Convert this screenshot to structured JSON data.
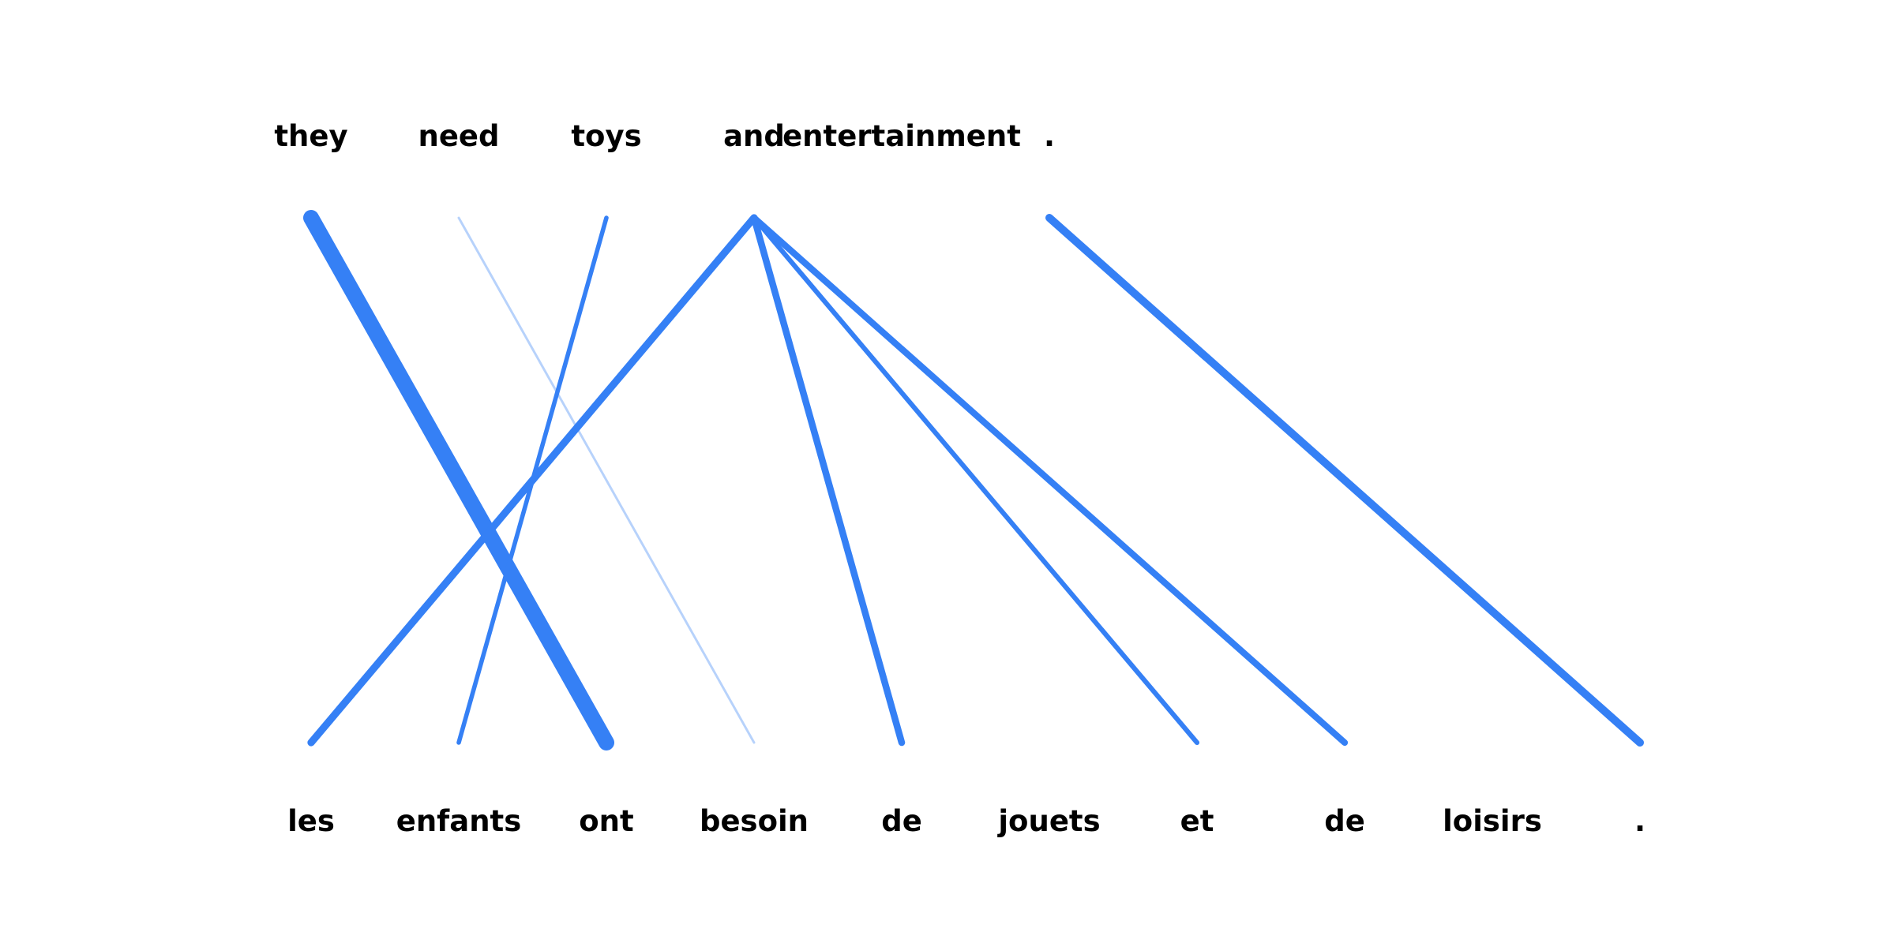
{
  "diagram": {
    "source_tokens": [
      "they",
      "need",
      "toys",
      "and",
      "entertainment",
      "."
    ],
    "target_tokens": [
      "les",
      "enfants",
      "ont",
      "besoin",
      "de",
      "jouets",
      "et",
      "de",
      "loisirs",
      "."
    ],
    "alignments": [
      {
        "source": 0,
        "target": 2,
        "weight": 1.0
      },
      {
        "source": 1,
        "target": 3,
        "weight": 0.08
      },
      {
        "source": 2,
        "target": 1,
        "weight": 0.22
      },
      {
        "source": 3,
        "target": 0,
        "weight": 0.42
      },
      {
        "source": 3,
        "target": 4,
        "weight": 0.38
      },
      {
        "source": 3,
        "target": 6,
        "weight": 0.25
      },
      {
        "source": 3,
        "target": 7,
        "weight": 0.36
      },
      {
        "source": 5,
        "target": 9,
        "weight": 0.46
      }
    ],
    "line_color": "#3580f5",
    "text_color": "#000000"
  }
}
